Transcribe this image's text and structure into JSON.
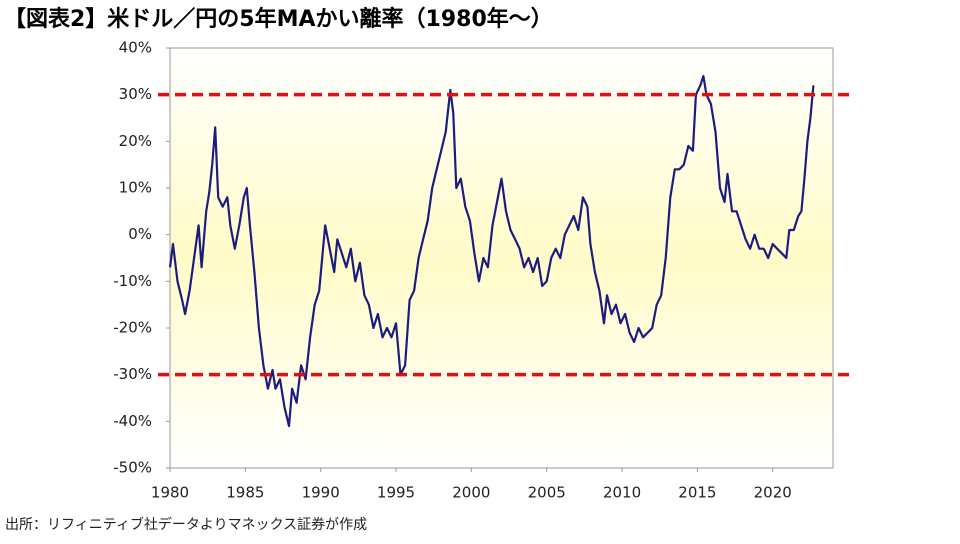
{
  "chart_data": {
    "type": "line",
    "title": "【図表2】米ドル／円の5年MAかい離率（1980年～）",
    "source": "出所：リフィニティブ社データよりマネックス証券が作成",
    "x": [
      1980.0,
      1980.2,
      1980.5,
      1980.8,
      1981.0,
      1981.3,
      1981.6,
      1981.9,
      1982.1,
      1982.4,
      1982.6,
      1982.8,
      1983.0,
      1983.2,
      1983.5,
      1983.8,
      1984.0,
      1984.3,
      1984.6,
      1984.9,
      1985.1,
      1985.3,
      1985.6,
      1985.9,
      1986.2,
      1986.5,
      1986.8,
      1987.0,
      1987.3,
      1987.6,
      1987.9,
      1988.1,
      1988.4,
      1988.7,
      1989.0,
      1989.3,
      1989.6,
      1989.9,
      1990.1,
      1990.3,
      1990.6,
      1990.9,
      1991.1,
      1991.4,
      1991.7,
      1992.0,
      1992.3,
      1992.6,
      1992.9,
      1993.2,
      1993.5,
      1993.8,
      1994.1,
      1994.4,
      1994.7,
      1995.0,
      1995.3,
      1995.6,
      1995.9,
      1996.2,
      1996.5,
      1996.8,
      1997.1,
      1997.4,
      1997.7,
      1998.0,
      1998.3,
      1998.6,
      1998.8,
      1999.0,
      1999.3,
      1999.6,
      1999.9,
      2000.2,
      2000.5,
      2000.8,
      2001.1,
      2001.4,
      2001.7,
      2002.0,
      2002.3,
      2002.6,
      2002.9,
      2003.2,
      2003.5,
      2003.8,
      2004.1,
      2004.4,
      2004.7,
      2005.0,
      2005.3,
      2005.6,
      2005.9,
      2006.2,
      2006.5,
      2006.8,
      2007.1,
      2007.4,
      2007.7,
      2007.9,
      2008.2,
      2008.5,
      2008.8,
      2009.0,
      2009.3,
      2009.6,
      2009.9,
      2010.2,
      2010.5,
      2010.8,
      2011.1,
      2011.4,
      2011.7,
      2012.0,
      2012.3,
      2012.6,
      2012.9,
      2013.2,
      2013.5,
      2013.8,
      2014.1,
      2014.4,
      2014.7,
      2014.9,
      2015.2,
      2015.4,
      2015.6,
      2015.9,
      2016.2,
      2016.5,
      2016.8,
      2017.0,
      2017.3,
      2017.6,
      2017.9,
      2018.2,
      2018.5,
      2018.8,
      2019.1,
      2019.4,
      2019.7,
      2020.0,
      2020.3,
      2020.6,
      2020.9,
      2021.1,
      2021.4,
      2021.7,
      2021.9,
      2022.1,
      2022.3,
      2022.5,
      2022.7
    ],
    "series": [
      {
        "color": "#1c1c80",
        "values": [
          -7,
          -2,
          -10,
          -14,
          -17,
          -12,
          -5,
          2,
          -7,
          5,
          9,
          15,
          23,
          8,
          6,
          8,
          2,
          -3,
          2,
          8,
          10,
          2,
          -8,
          -20,
          -28,
          -33,
          -29,
          -33,
          -31,
          -37,
          -41,
          -33,
          -36,
          -28,
          -31,
          -22,
          -15,
          -12,
          -5,
          2,
          -3,
          -8,
          -1,
          -4,
          -7,
          -3,
          -10,
          -6,
          -13,
          -15,
          -20,
          -17,
          -22,
          -20,
          -22,
          -19,
          -30,
          -28,
          -14,
          -12,
          -5,
          -1,
          3,
          10,
          14,
          18,
          22,
          31,
          26,
          10,
          12,
          6,
          3,
          -4,
          -10,
          -5,
          -7,
          2,
          7,
          12,
          5,
          1,
          -1,
          -3,
          -7,
          -5,
          -8,
          -5,
          -11,
          -10,
          -5,
          -3,
          -5,
          0,
          2,
          4,
          1,
          8,
          6,
          -2,
          -8,
          -12,
          -19,
          -13,
          -17,
          -15,
          -19,
          -17,
          -21,
          -23,
          -20,
          -22,
          -21,
          -20,
          -15,
          -13,
          -5,
          8,
          14,
          14,
          15,
          19,
          18,
          30,
          32,
          34,
          30,
          28,
          22,
          10,
          7,
          13,
          5,
          5,
          2,
          -1,
          -3,
          0,
          -3,
          -3,
          -5,
          -2,
          -3,
          -4,
          -5,
          1,
          1,
          4,
          5,
          12,
          20,
          25,
          32
        ]
      }
    ],
    "xlim": [
      1980,
      2024
    ],
    "ylim": [
      -50,
      40
    ],
    "xticks": [
      1980,
      1985,
      1990,
      1995,
      2000,
      2005,
      2010,
      2015,
      2020
    ],
    "yticks": [
      {
        "value": -50,
        "label": "-50%"
      },
      {
        "value": -40,
        "label": "-40%"
      },
      {
        "value": -30,
        "label": "-30%"
      },
      {
        "value": -20,
        "label": "-20%"
      },
      {
        "value": -10,
        "label": "-10%"
      },
      {
        "value": 0,
        "label": "0%"
      },
      {
        "value": 10,
        "label": "10%"
      },
      {
        "value": 20,
        "label": "20%"
      },
      {
        "value": 30,
        "label": "30%"
      },
      {
        "value": 40,
        "label": "40%"
      }
    ],
    "negative_tick_color": "#e00000",
    "hlines": [
      {
        "value": 30,
        "color": "#e01010"
      },
      {
        "value": -30,
        "color": "#e01010"
      }
    ]
  }
}
